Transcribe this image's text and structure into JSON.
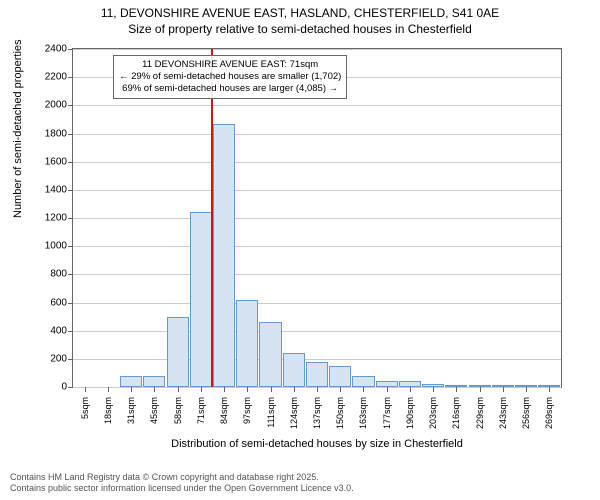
{
  "title": {
    "line1": "11, DEVONSHIRE AVENUE EAST, HASLAND, CHESTERFIELD, S41 0AE",
    "line2": "Size of property relative to semi-detached houses in Chesterfield"
  },
  "chart": {
    "type": "histogram",
    "ylabel": "Number of semi-detached properties",
    "xlabel": "Distribution of semi-detached houses by size in Chesterfield",
    "ylim": [
      0,
      2400
    ],
    "ytick_step": 200,
    "yticks": [
      0,
      200,
      400,
      600,
      800,
      1000,
      1200,
      1400,
      1600,
      1800,
      2000,
      2200,
      2400
    ],
    "xticks": [
      "5sqm",
      "18sqm",
      "31sqm",
      "45sqm",
      "58sqm",
      "71sqm",
      "84sqm",
      "97sqm",
      "111sqm",
      "124sqm",
      "137sqm",
      "150sqm",
      "163sqm",
      "177sqm",
      "190sqm",
      "203sqm",
      "216sqm",
      "229sqm",
      "243sqm",
      "256sqm",
      "269sqm"
    ],
    "bar_values": [
      0,
      0,
      80,
      80,
      500,
      1240,
      1870,
      620,
      460,
      240,
      180,
      150,
      80,
      40,
      40,
      20,
      15,
      10,
      10,
      5,
      5
    ],
    "bar_fill": "#d5e3f3",
    "bar_border": "#6699cc",
    "grid_color": "#cccccc",
    "axis_color": "#666666",
    "background": "#ffffff",
    "marker_index": 5,
    "marker_color": "#d01717",
    "marker_value_sqm": 71
  },
  "annotation": {
    "line1": "11 DEVONSHIRE AVENUE EAST: 71sqm",
    "line2": "← 29% of semi-detached houses are smaller (1,702)",
    "line3": "69% of semi-detached houses are larger (4,085) →"
  },
  "footer": {
    "line1": "Contains HM Land Registry data © Crown copyright and database right 2025.",
    "line2": "Contains public sector information licensed under the Open Government Licence v3.0."
  }
}
